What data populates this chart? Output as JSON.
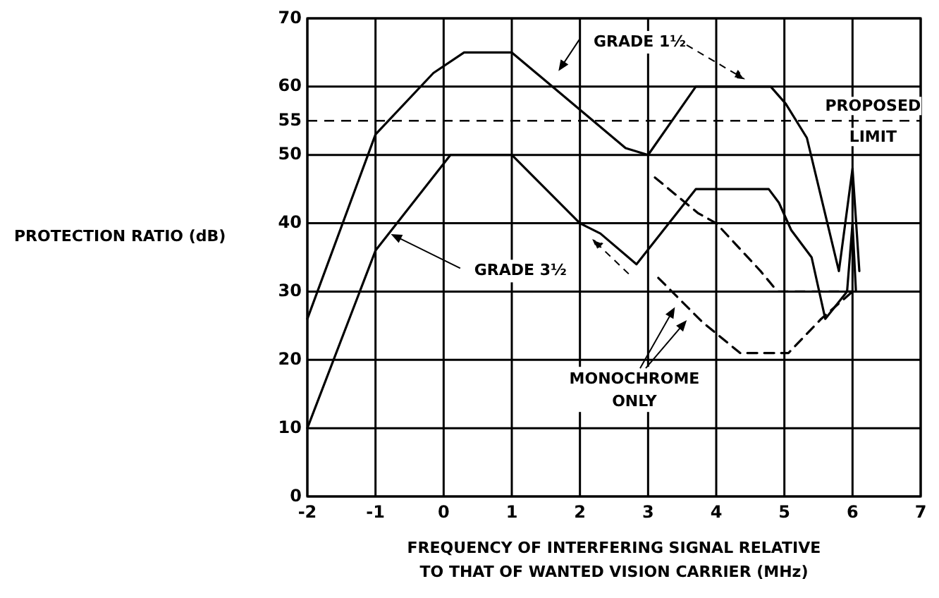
{
  "chart_data": {
    "type": "line",
    "ylabel": "PROTECTION RATIO (dB)",
    "xlabel": "FREQUENCY OF INTERFERING SIGNAL RELATIVE\nTO THAT OF WANTED VISION CARRIER (MHz)",
    "xlim": [
      -2,
      7
    ],
    "xticks": [
      -2,
      -1,
      0,
      1,
      2,
      3,
      4,
      5,
      6,
      7
    ],
    "ylim": [
      0,
      70
    ],
    "yticks": [
      0,
      10,
      20,
      30,
      40,
      50,
      55,
      60,
      70
    ],
    "grid": true,
    "marker": "none",
    "series": [
      {
        "name": "GRADE 1½",
        "color": "#000000",
        "line_style": "solid",
        "x": [
          -2,
          -1,
          -0.15,
          0.3,
          1,
          2.67,
          3,
          3.7,
          4.8,
          5.02,
          5.33,
          5.8,
          6,
          6.1
        ],
        "values": [
          26,
          53,
          62,
          65,
          65,
          51,
          50,
          60,
          60,
          57.5,
          52.5,
          33,
          48,
          33
        ]
      },
      {
        "name": "GRADE 3½",
        "color": "#000000",
        "line_style": "solid",
        "x": [
          -2,
          -1,
          0.1,
          1,
          2,
          2.3,
          2.83,
          3.7,
          4.77,
          4.92,
          5.1,
          5.4,
          5.6,
          5.92,
          6,
          6.05
        ],
        "values": [
          10,
          36,
          50,
          50,
          40,
          38.5,
          34,
          45,
          45,
          43,
          39,
          35,
          26,
          30,
          40,
          30
        ]
      },
      {
        "color": "#000000",
        "line_style": "dashed",
        "x": [
          3.1,
          3.73,
          4,
          4.65,
          4.9,
          6
        ],
        "values": [
          46.7,
          41.5,
          40,
          33,
          30,
          30
        ]
      },
      {
        "color": "#000000",
        "line_style": "dashed",
        "x": [
          3.15,
          3.8,
          4.35,
          5.06,
          5.54,
          6
        ],
        "values": [
          32,
          25.5,
          21,
          21,
          26,
          30
        ]
      }
    ],
    "ref_lines": [
      {
        "axis": "y",
        "value": 55,
        "label": "PROPOSED LIMIT",
        "line_style": "dashed"
      }
    ],
    "annotations": [
      "MONOCHROME ONLY"
    ]
  }
}
